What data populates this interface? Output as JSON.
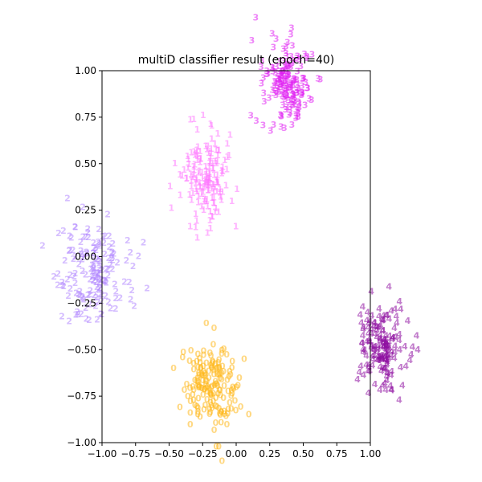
{
  "chart_data": {
    "type": "scatter",
    "title": "multiD classifier result (epoch=40)",
    "xlabel": "",
    "ylabel": "",
    "xlim": [
      -1.0,
      1.0
    ],
    "ylim": [
      -1.0,
      1.0
    ],
    "x_ticks": [
      "−1.00",
      "−0.75",
      "−0.50",
      "−0.25",
      "0.00",
      "0.25",
      "0.50",
      "0.75",
      "1.00"
    ],
    "y_ticks": [
      "−1.00",
      "−0.75",
      "−0.50",
      "−0.25",
      "0.00",
      "0.25",
      "0.50",
      "0.75",
      "1.00"
    ],
    "grid": false,
    "marker": "class digit",
    "series": [
      {
        "label": "0",
        "color": "#FFB81C",
        "center": [
          -0.2,
          -0.7
        ],
        "spread": [
          0.1,
          0.11
        ],
        "n": 170
      },
      {
        "label": "1",
        "color": "#FF77FF",
        "center": [
          -0.22,
          0.43
        ],
        "spread": [
          0.09,
          0.12
        ],
        "n": 160
      },
      {
        "label": "2",
        "color": "#B388FF",
        "center": [
          -1.05,
          -0.1
        ],
        "spread": [
          0.13,
          0.13
        ],
        "n": 160
      },
      {
        "label": "3",
        "color": "#E01FF2",
        "center": [
          0.38,
          0.93
        ],
        "spread": [
          0.1,
          0.11
        ],
        "n": 170
      },
      {
        "label": "4",
        "color": "#8E0EA0",
        "center": [
          1.1,
          -0.47
        ],
        "spread": [
          0.1,
          0.12
        ],
        "n": 170
      }
    ]
  }
}
